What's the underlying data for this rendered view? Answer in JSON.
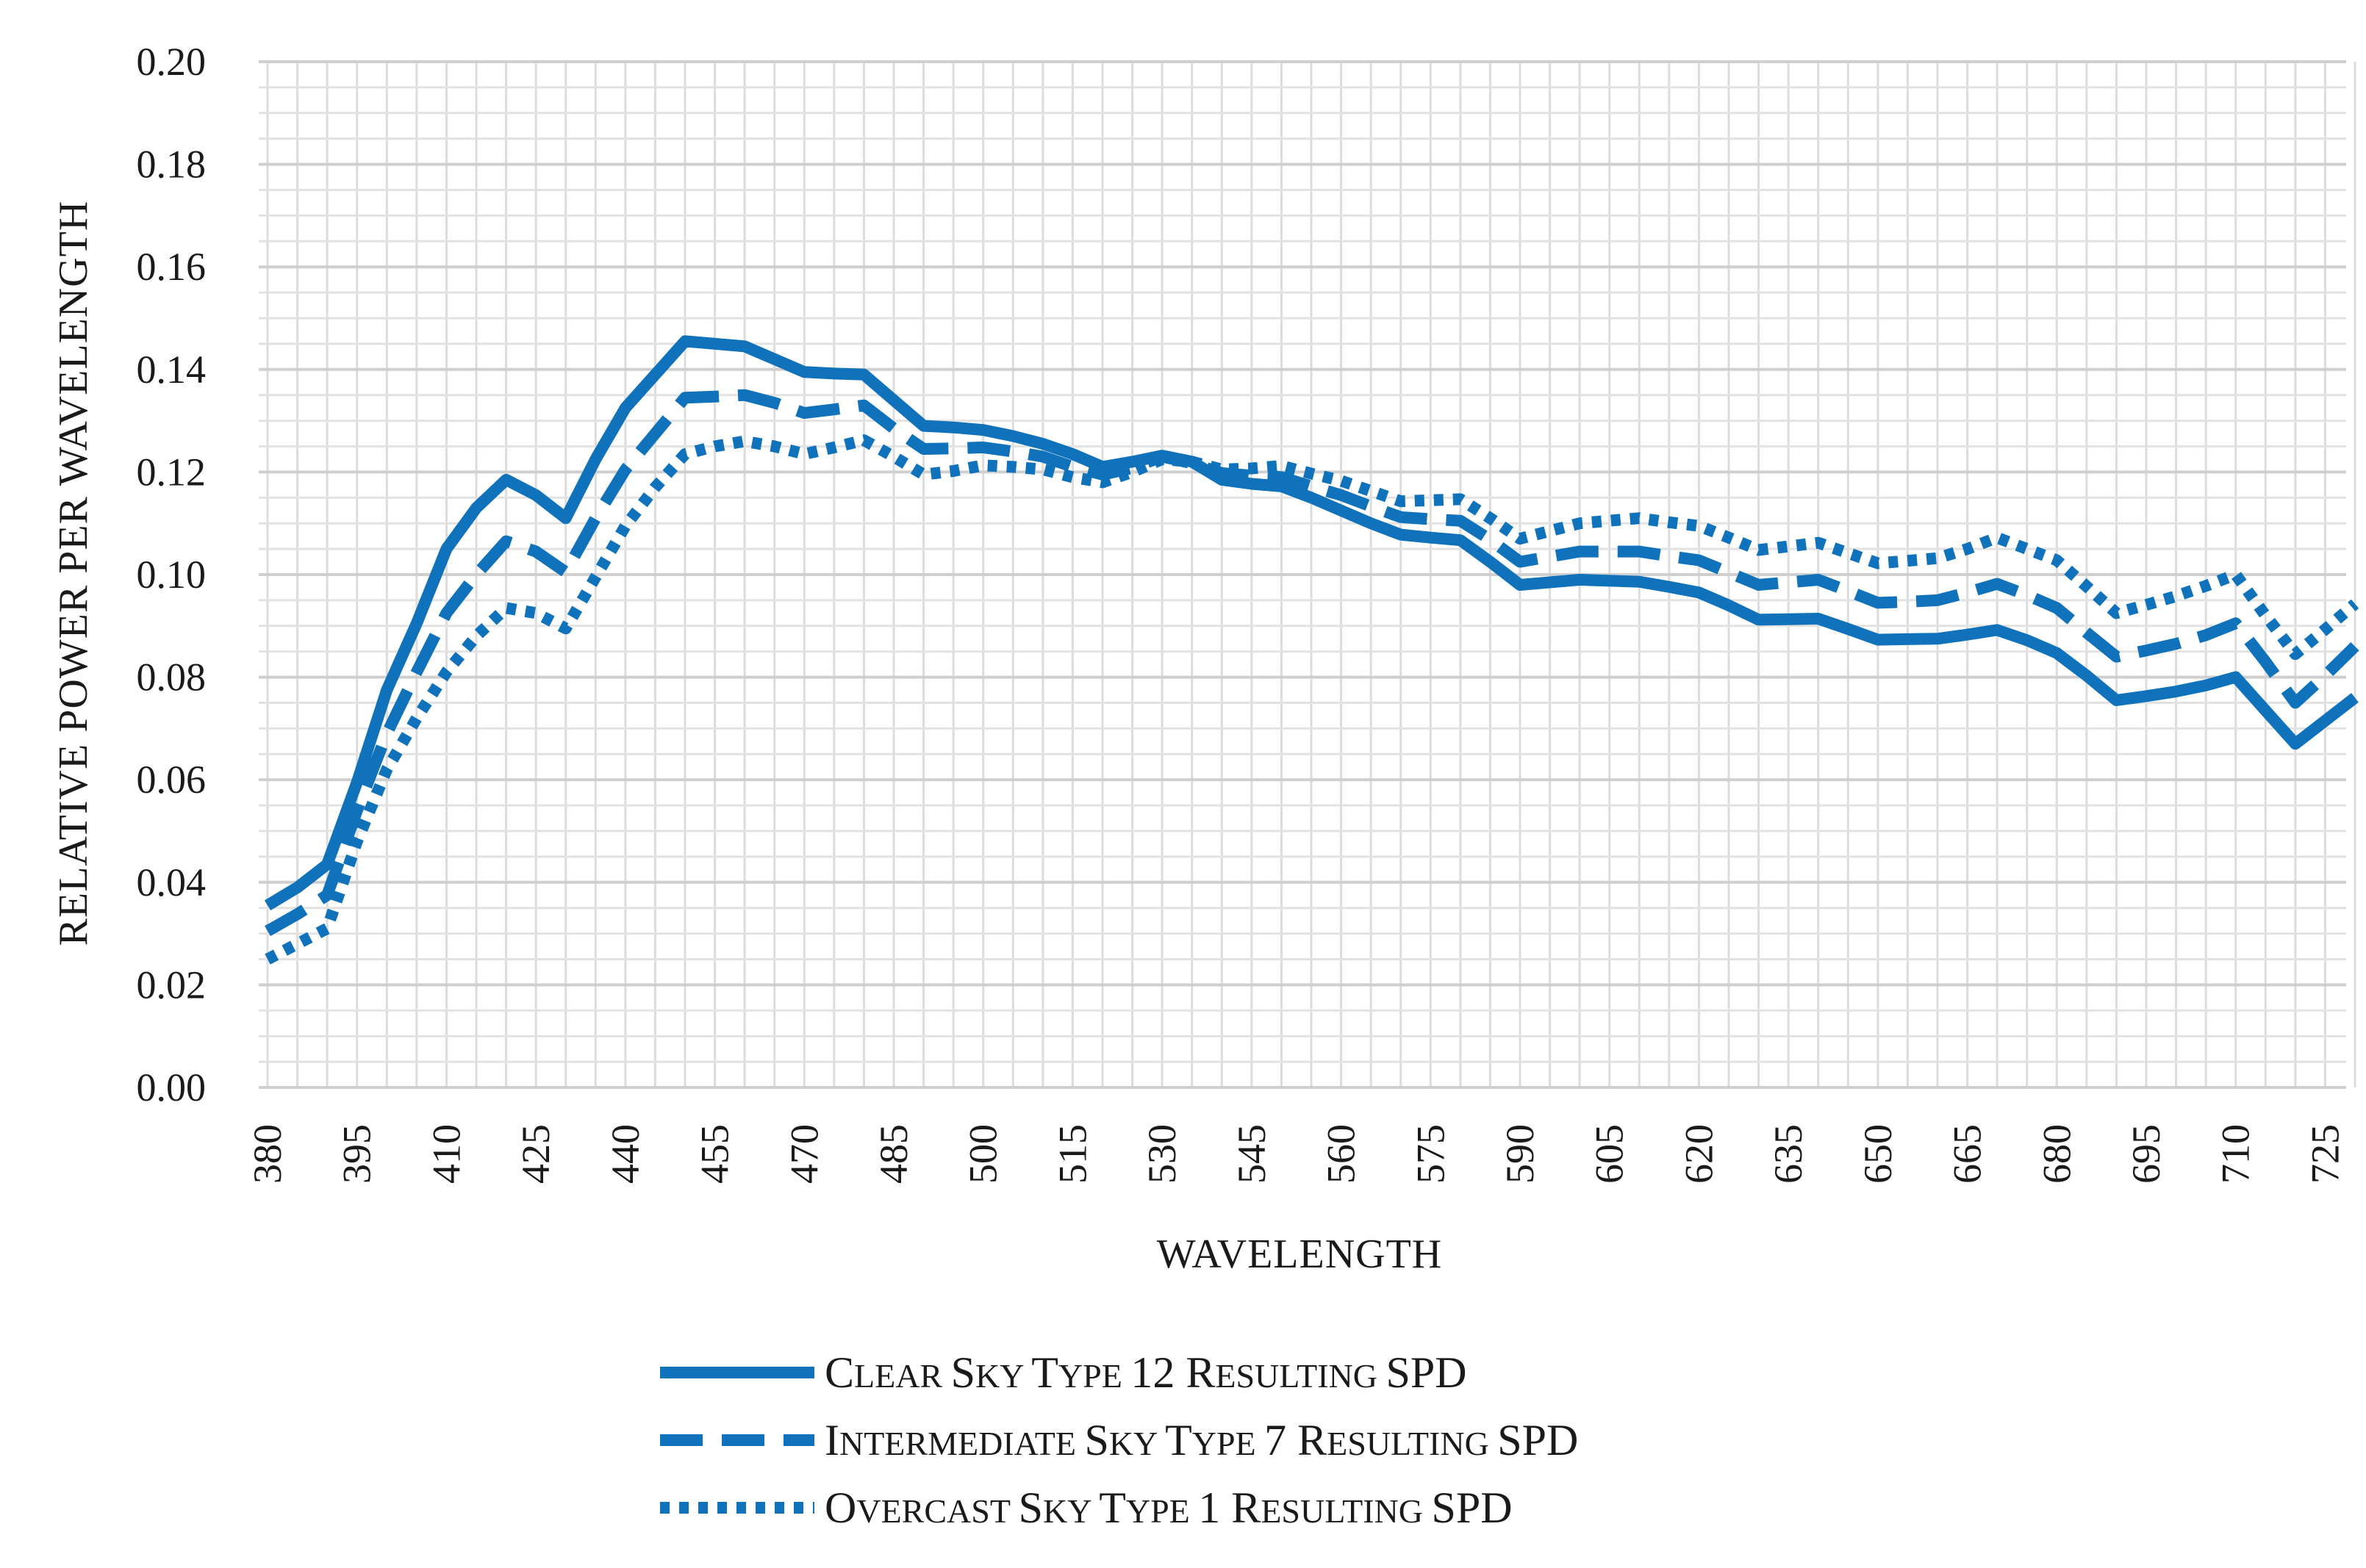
{
  "chart_data": {
    "type": "line",
    "title": "",
    "xlabel": "WAVELENGTH",
    "ylabel": "RELATIVE POWER PER WAVELENGTH",
    "ylim": [
      0,
      0.2
    ],
    "y_ticks": [
      "0.00",
      "0.02",
      "0.04",
      "0.06",
      "0.08",
      "0.10",
      "0.12",
      "0.14",
      "0.16",
      "0.18",
      "0.20"
    ],
    "x_tick_labels": [
      "380",
      "395",
      "410",
      "425",
      "440",
      "455",
      "470",
      "485",
      "500",
      "515",
      "530",
      "545",
      "560",
      "575",
      "590",
      "605",
      "620",
      "635",
      "650",
      "665",
      "680",
      "695",
      "710",
      "725"
    ],
    "x": [
      380,
      385,
      390,
      395,
      400,
      405,
      410,
      415,
      420,
      425,
      430,
      435,
      440,
      445,
      450,
      455,
      460,
      465,
      470,
      475,
      480,
      485,
      490,
      495,
      500,
      505,
      510,
      515,
      520,
      525,
      530,
      535,
      540,
      545,
      550,
      555,
      560,
      565,
      570,
      575,
      580,
      585,
      590,
      595,
      600,
      605,
      610,
      615,
      620,
      625,
      630,
      635,
      640,
      645,
      650,
      655,
      660,
      665,
      670,
      675,
      680,
      685,
      690,
      695,
      700,
      705,
      710,
      715,
      720,
      725,
      730
    ],
    "grid": true,
    "legend_position": "bottom",
    "series": [
      {
        "name": "Clear Sky Type 12 Resulting SPD",
        "style": "solid",
        "color": "#0F72BA",
        "values": [
          0.0355,
          0.039,
          0.0435,
          0.0595,
          0.0775,
          0.0905,
          0.105,
          0.113,
          0.1185,
          0.1155,
          0.111,
          0.1225,
          0.1325,
          0.139,
          0.1455,
          0.145,
          0.1445,
          0.142,
          0.1395,
          0.1392,
          0.139,
          0.134,
          0.129,
          0.1287,
          0.1282,
          0.127,
          0.1255,
          0.1235,
          0.121,
          0.122,
          0.1232,
          0.122,
          0.1185,
          0.1177,
          0.1172,
          0.115,
          0.1125,
          0.11,
          0.1078,
          0.1072,
          0.1067,
          0.1025,
          0.098,
          0.0985,
          0.099,
          0.0988,
          0.0986,
          0.0976,
          0.0965,
          0.094,
          0.0912,
          0.0913,
          0.0914,
          0.0894,
          0.0873,
          0.0874,
          0.0875,
          0.0883,
          0.0892,
          0.0872,
          0.0847,
          0.0803,
          0.0755,
          0.0763,
          0.0772,
          0.0784,
          0.08,
          0.0735,
          0.067,
          0.0715,
          0.076
        ]
      },
      {
        "name": "Intermediate Sky Type 7 Resulting SPD",
        "style": "dashed",
        "color": "#0F72BA",
        "values": [
          0.0305,
          0.0338,
          0.0375,
          0.054,
          0.069,
          0.081,
          0.0925,
          0.1,
          0.1065,
          0.1045,
          0.1005,
          0.111,
          0.1205,
          0.1275,
          0.1345,
          0.1347,
          0.135,
          0.1335,
          0.1315,
          0.1322,
          0.133,
          0.1285,
          0.1245,
          0.1246,
          0.1248,
          0.124,
          0.123,
          0.121,
          0.1195,
          0.1208,
          0.123,
          0.1217,
          0.1198,
          0.1193,
          0.119,
          0.1172,
          0.1155,
          0.1133,
          0.1112,
          0.1108,
          0.1105,
          0.1068,
          0.1025,
          0.1035,
          0.1045,
          0.1045,
          0.1045,
          0.1036,
          0.1028,
          0.1004,
          0.098,
          0.0985,
          0.099,
          0.0968,
          0.0945,
          0.0947,
          0.095,
          0.0965,
          0.0982,
          0.096,
          0.0935,
          0.0887,
          0.084,
          0.0852,
          0.0865,
          0.0882,
          0.0905,
          0.083,
          0.075,
          0.0803,
          0.086
        ]
      },
      {
        "name": "Overcast Sky Type 1 Resulting SPD",
        "style": "dotted",
        "color": "#0F72BA",
        "values": [
          0.025,
          0.028,
          0.031,
          0.048,
          0.062,
          0.072,
          0.081,
          0.088,
          0.0935,
          0.0925,
          0.0895,
          0.0995,
          0.1095,
          0.117,
          0.1235,
          0.125,
          0.126,
          0.125,
          0.1235,
          0.1248,
          0.1262,
          0.123,
          0.1195,
          0.1202,
          0.1213,
          0.121,
          0.1205,
          0.119,
          0.118,
          0.12,
          0.1225,
          0.122,
          0.1205,
          0.1207,
          0.1212,
          0.1197,
          0.1183,
          0.1163,
          0.1143,
          0.1145,
          0.1147,
          0.111,
          0.107,
          0.1085,
          0.11,
          0.1105,
          0.111,
          0.1102,
          0.1095,
          0.1072,
          0.1048,
          0.1055,
          0.1062,
          0.1042,
          0.1022,
          0.1027,
          0.1032,
          0.105,
          0.1072,
          0.105,
          0.1028,
          0.0977,
          0.0925,
          0.0941,
          0.0958,
          0.0978,
          0.1,
          0.092,
          0.0845,
          0.0893,
          0.0943
        ]
      }
    ]
  },
  "legend": [
    {
      "first": "C",
      "rest": "LEAR ",
      "first2": "S",
      "rest2": "KY ",
      "first3": "T",
      "rest3": "YPE ",
      "num": "12 ",
      "first4": "R",
      "rest4": "ESULTING ",
      "tail": "SPD"
    },
    {
      "first": "I",
      "rest": "NTERMEDIATE ",
      "first2": "S",
      "rest2": "KY ",
      "first3": "T",
      "rest3": "YPE ",
      "num": "7 ",
      "first4": "R",
      "rest4": "ESULTING ",
      "tail": "SPD"
    },
    {
      "first": "O",
      "rest": "VERCAST ",
      "first2": "S",
      "rest2": "KY ",
      "first3": "T",
      "rest3": "YPE ",
      "num": "1 ",
      "first4": "R",
      "rest4": "ESULTING ",
      "tail": "SPD"
    }
  ]
}
